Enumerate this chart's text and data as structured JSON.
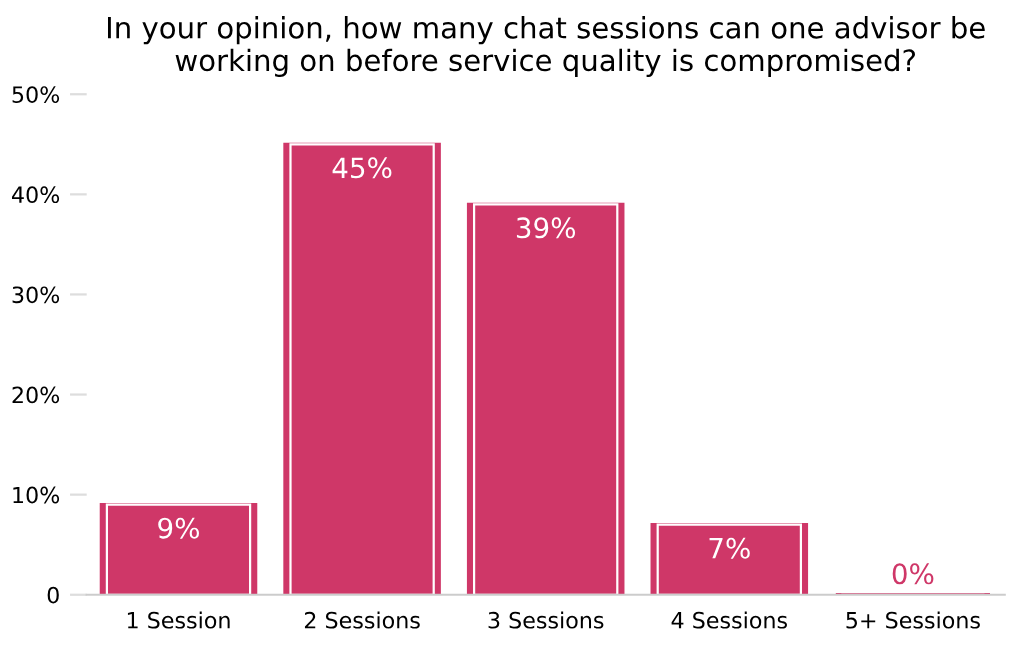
{
  "chart_data": {
    "type": "bar",
    "title": "In your opinion, how many chat sessions can one advisor be working on before service quality is compromised?",
    "categories": [
      "1 Session",
      "2 Sessions",
      "3 Sessions",
      "4 Sessions",
      "5+ Sessions"
    ],
    "values": [
      9,
      45,
      39,
      7,
      0
    ],
    "value_labels": [
      "9%",
      "45%",
      "39%",
      "7%",
      "0%"
    ],
    "color": "#cf3768",
    "ylim": [
      0,
      50
    ],
    "yticks": [
      0,
      {
        "value": 10,
        "label": "10%"
      },
      {
        "value": 20,
        "label": "20%"
      },
      {
        "value": 30,
        "label": "30%"
      },
      {
        "value": 40,
        "label": "40%"
      },
      {
        "value": 50,
        "label": "50%"
      }
    ],
    "grid": false
  }
}
